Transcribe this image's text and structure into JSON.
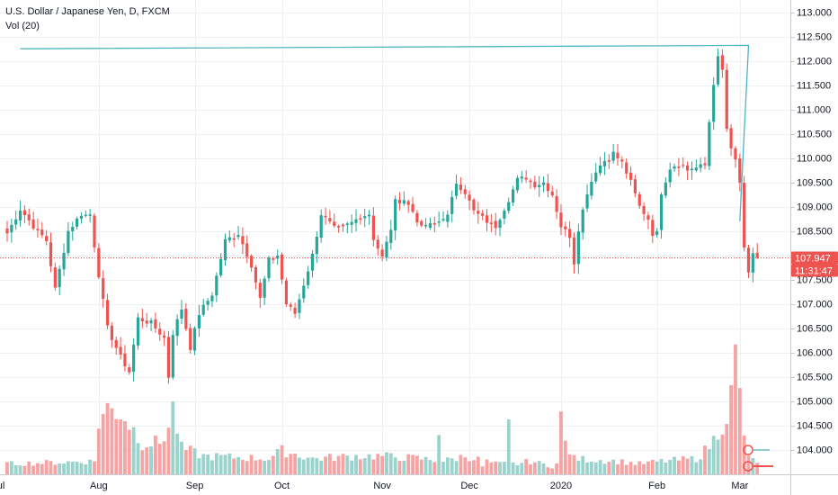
{
  "legend": {
    "title": "U.S. Dollar / Japanese Yen, D, FXCM",
    "indicator": "Vol (20)"
  },
  "colors": {
    "up": "#26a69a",
    "down": "#ef5350",
    "up_volume": "#9ad2cc",
    "down_volume": "#f5a3a3",
    "trendline": "#4db6c4",
    "grid": "#eef1f4",
    "price_line": "#ef5350",
    "axis_text": "#131722"
  },
  "chart_data": {
    "type": "candlestick",
    "title": "U.S. Dollar / Japanese Yen, D, FXCM",
    "y_axis": {
      "ylim": [
        103.75,
        113.05
      ],
      "ticks": [
        "113.000",
        "112.500",
        "112.000",
        "111.500",
        "111.000",
        "110.500",
        "110.000",
        "109.500",
        "109.000",
        "108.500",
        "108.000",
        "107.500",
        "107.000",
        "106.500",
        "106.000",
        "105.500",
        "105.000",
        "104.500",
        "104.000"
      ]
    },
    "x_axis": {
      "ticks": [
        {
          "label": "Jul",
          "index": -2
        },
        {
          "label": "Aug",
          "index": 21
        },
        {
          "label": "Sep",
          "index": 43
        },
        {
          "label": "Oct",
          "index": 63
        },
        {
          "label": "Nov",
          "index": 86
        },
        {
          "label": "Dec",
          "index": 106
        },
        {
          "label": "2020",
          "index": 127
        },
        {
          "label": "Feb",
          "index": 149
        },
        {
          "label": "Mar",
          "index": 168
        }
      ]
    },
    "grid": true,
    "last_price": "107.947",
    "countdown": "11:31:47",
    "trendline": [
      [
        3,
        112.25
      ],
      [
        170,
        112.32
      ],
      [
        168,
        108.7
      ]
    ],
    "anchors": [
      [
        0,
        108.45
      ],
      [
        3,
        108.95
      ],
      [
        6,
        108.6
      ],
      [
        9,
        108.3
      ],
      [
        11,
        107.3
      ],
      [
        14,
        108.5
      ],
      [
        17,
        108.85
      ],
      [
        19,
        108.8
      ],
      [
        21,
        107.6
      ],
      [
        23,
        106.5
      ],
      [
        26,
        105.9
      ],
      [
        28,
        105.6
      ],
      [
        30,
        106.7
      ],
      [
        33,
        106.6
      ],
      [
        36,
        106.3
      ],
      [
        37,
        105.5
      ],
      [
        38,
        106.4
      ],
      [
        40,
        106.9
      ],
      [
        42,
        106.1
      ],
      [
        44,
        106.8
      ],
      [
        47,
        107.2
      ],
      [
        50,
        108.3
      ],
      [
        53,
        108.45
      ],
      [
        56,
        107.8
      ],
      [
        58,
        107.1
      ],
      [
        60,
        107.9
      ],
      [
        62,
        108.0
      ],
      [
        64,
        107.0
      ],
      [
        66,
        106.8
      ],
      [
        68,
        107.4
      ],
      [
        70,
        108.0
      ],
      [
        72,
        108.85
      ],
      [
        75,
        108.55
      ],
      [
        78,
        108.6
      ],
      [
        81,
        108.8
      ],
      [
        83,
        108.85
      ],
      [
        84,
        108.35
      ],
      [
        86,
        107.95
      ],
      [
        88,
        108.55
      ],
      [
        89,
        109.1
      ],
      [
        91,
        109.15
      ],
      [
        93,
        108.9
      ],
      [
        95,
        108.55
      ],
      [
        98,
        108.65
      ],
      [
        101,
        108.8
      ],
      [
        103,
        109.5
      ],
      [
        105,
        109.3
      ],
      [
        107,
        108.9
      ],
      [
        110,
        108.7
      ],
      [
        112,
        108.6
      ],
      [
        115,
        109.15
      ],
      [
        117,
        109.55
      ],
      [
        119,
        109.6
      ],
      [
        121,
        109.45
      ],
      [
        123,
        109.5
      ],
      [
        125,
        109.25
      ],
      [
        127,
        108.6
      ],
      [
        129,
        108.4
      ],
      [
        130,
        107.85
      ],
      [
        131,
        108.55
      ],
      [
        133,
        109.3
      ],
      [
        135,
        109.75
      ],
      [
        137,
        109.95
      ],
      [
        139,
        110.1
      ],
      [
        141,
        109.9
      ],
      [
        143,
        109.5
      ],
      [
        145,
        109.0
      ],
      [
        147,
        108.75
      ],
      [
        148,
        108.45
      ],
      [
        149,
        108.45
      ],
      [
        150,
        109.3
      ],
      [
        152,
        109.8
      ],
      [
        154,
        109.9
      ],
      [
        156,
        109.75
      ],
      [
        158,
        109.8
      ],
      [
        160,
        109.85
      ],
      [
        161,
        110.75
      ],
      [
        162,
        111.55
      ],
      [
        163,
        112.05
      ],
      [
        164,
        111.8
      ],
      [
        165,
        110.6
      ],
      [
        166,
        110.15
      ],
      [
        167,
        109.95
      ],
      [
        168,
        109.5
      ],
      [
        169,
        108.1
      ],
      [
        170,
        107.6
      ],
      [
        171,
        108.05
      ],
      [
        172,
        107.95
      ]
    ],
    "volume_anchors": [
      [
        0,
        4
      ],
      [
        20,
        5
      ],
      [
        21,
        20
      ],
      [
        23,
        25
      ],
      [
        26,
        24
      ],
      [
        29,
        17
      ],
      [
        31,
        12
      ],
      [
        35,
        12
      ],
      [
        37,
        18
      ],
      [
        38,
        25
      ],
      [
        40,
        10
      ],
      [
        45,
        7
      ],
      [
        60,
        6
      ],
      [
        63,
        9
      ],
      [
        70,
        6
      ],
      [
        80,
        7
      ],
      [
        86,
        7
      ],
      [
        95,
        6
      ],
      [
        100,
        5
      ],
      [
        105,
        7
      ],
      [
        112,
        4
      ],
      [
        117,
        4
      ],
      [
        120,
        5
      ],
      [
        125,
        3
      ],
      [
        127,
        5
      ],
      [
        128,
        12
      ],
      [
        130,
        6
      ],
      [
        140,
        5
      ],
      [
        145,
        4
      ],
      [
        150,
        5
      ],
      [
        158,
        6
      ],
      [
        160,
        9
      ],
      [
        162,
        13
      ],
      [
        164,
        20
      ],
      [
        165,
        23
      ],
      [
        166,
        30
      ],
      [
        167,
        44
      ],
      [
        168,
        30
      ],
      [
        169,
        16
      ],
      [
        170,
        6
      ],
      [
        172,
        5
      ]
    ],
    "volume_spikes": [
      [
        99,
        15
      ],
      [
        109,
        3
      ],
      [
        115,
        21
      ],
      [
        127,
        24
      ]
    ],
    "volume_max": 44
  }
}
